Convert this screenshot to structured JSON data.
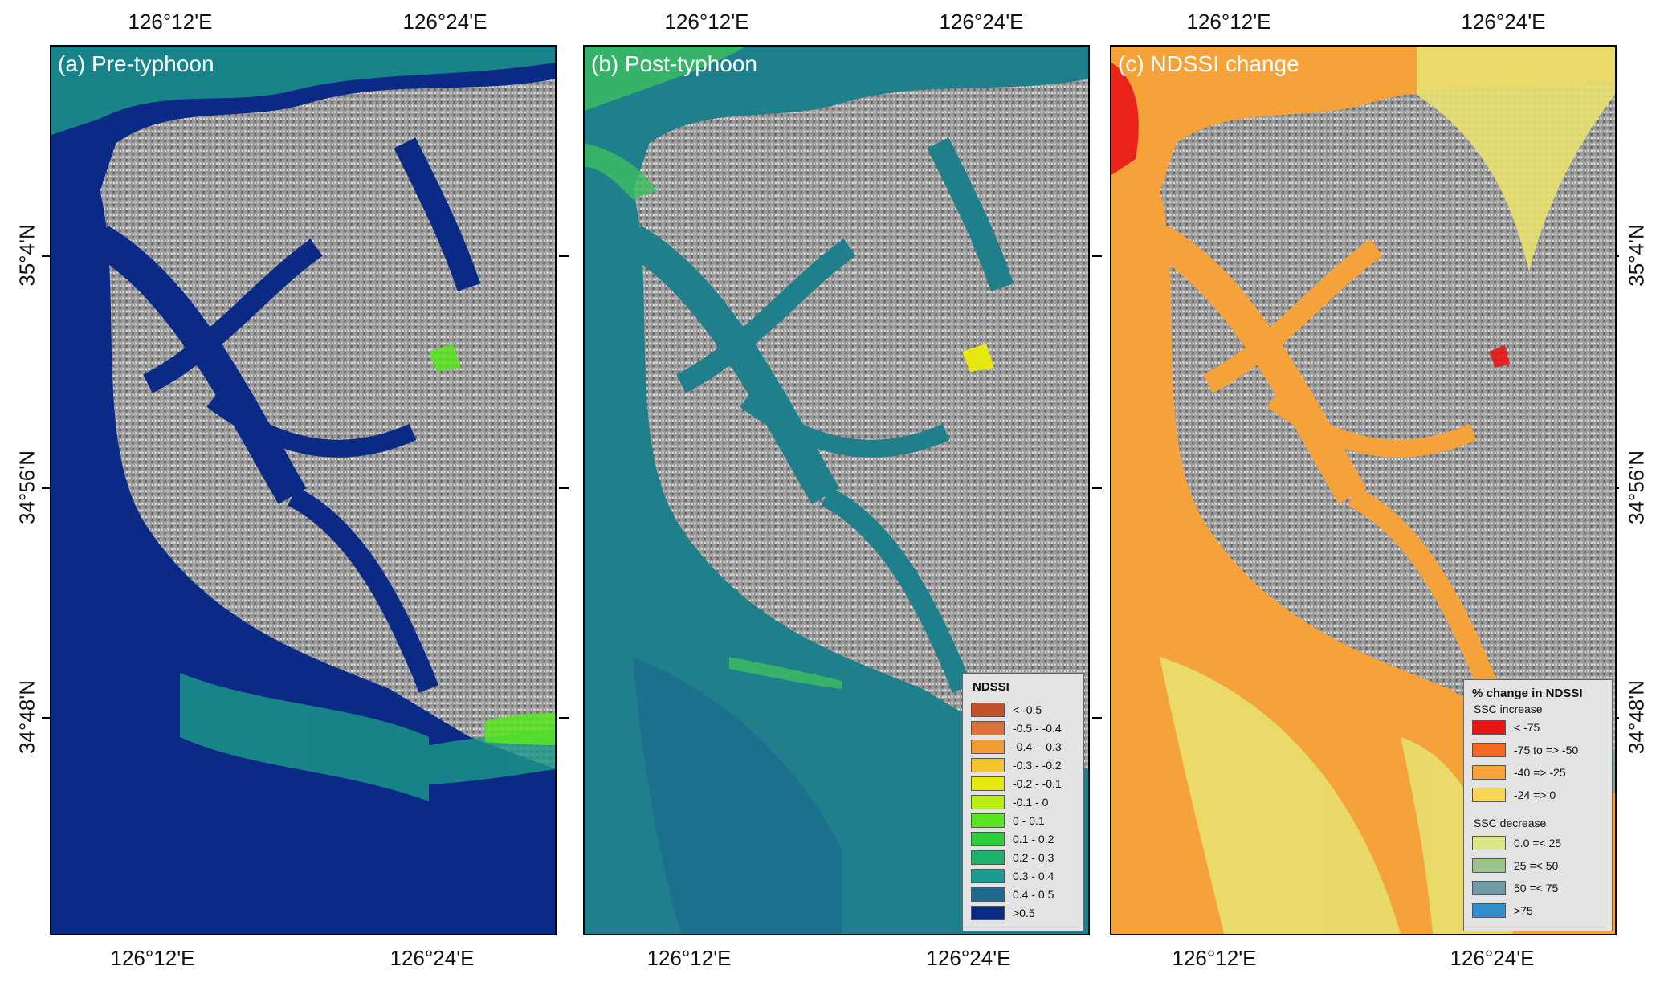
{
  "axes": {
    "lon_labels": [
      "126°12'E",
      "126°24'E"
    ],
    "lat_labels": [
      "35°4'N",
      "34°56'N",
      "34°48'N"
    ]
  },
  "panels": [
    {
      "title": "(a) Pre-typhoon",
      "water_color": "#0a2a86",
      "accent_color": "#1b9a8a"
    },
    {
      "title": "(b) Post-typhoon",
      "water_color": "#1f7f8a",
      "accent_color": "#3cc060"
    },
    {
      "title": "(c) NDSSI change",
      "water_color": "#f6a23a",
      "accent_color": "#e8e070"
    }
  ],
  "legend_ndssi": {
    "title": "NDSSI",
    "items": [
      {
        "label": "< -0.5",
        "color": "#c0522e"
      },
      {
        "label": "-0.5 - -0.4",
        "color": "#d9733a"
      },
      {
        "label": "-0.4 - -0.3",
        "color": "#f19c36"
      },
      {
        "label": "-0.3 - -0.2",
        "color": "#f5c232"
      },
      {
        "label": "-0.2 - -0.1",
        "color": "#e6e810"
      },
      {
        "label": "-0.1 - 0",
        "color": "#b8ef12"
      },
      {
        "label": "0 - 0.1",
        "color": "#58e61e"
      },
      {
        "label": "0.1 - 0.2",
        "color": "#2fcc3c"
      },
      {
        "label": "0.2 - 0.3",
        "color": "#1fb06a"
      },
      {
        "label": "0.3 - 0.4",
        "color": "#1a9c95"
      },
      {
        "label": "0.4 - 0.5",
        "color": "#1b6a8e"
      },
      {
        "label": ">0.5",
        "color": "#0b2a84"
      }
    ]
  },
  "legend_change": {
    "title": "% change in NDSSI",
    "increase_label": "SSC increase",
    "decrease_label": "SSC decrease",
    "increase_items": [
      {
        "label": "< -75",
        "color": "#e81515"
      },
      {
        "label": "-75 to => -50",
        "color": "#f26a22"
      },
      {
        "label": "-40 => -25",
        "color": "#f6a43a"
      },
      {
        "label": "-24 => 0",
        "color": "#f7d45a"
      }
    ],
    "decrease_items": [
      {
        "label": "0.0 =< 25",
        "color": "#dde88a"
      },
      {
        "label": "25 =< 50",
        "color": "#9cc48a"
      },
      {
        "label": "50 =< 75",
        "color": "#6f9aa8"
      },
      {
        "label": ">75",
        "color": "#2f8fd0"
      }
    ]
  }
}
